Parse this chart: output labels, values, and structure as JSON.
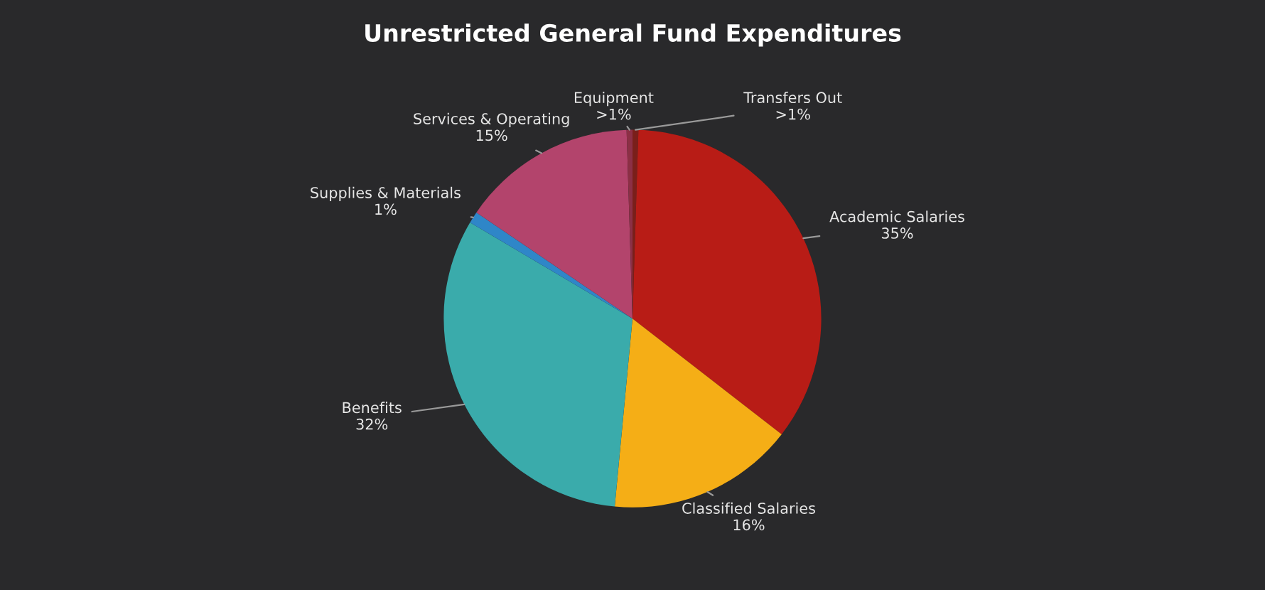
{
  "chart_data": {
    "type": "pie",
    "title": "Unrestricted General Fund Expenditures",
    "categories": [
      "Transfers Out",
      "Academic Salaries",
      "Classified Salaries",
      "Benefits",
      "Supplies & Materials",
      "Services & Operating",
      "Equipment"
    ],
    "values": [
      0.5,
      35,
      16,
      32,
      1,
      15,
      0.5
    ],
    "value_labels": [
      ">1%",
      "35%",
      "16%",
      "32%",
      "1%",
      "15%",
      ">1%"
    ],
    "colors": [
      "#7a1f1a",
      "#b81c16",
      "#f5ae16",
      "#3aabab",
      "#2f86c8",
      "#b3446c",
      "#8c2f45"
    ]
  }
}
